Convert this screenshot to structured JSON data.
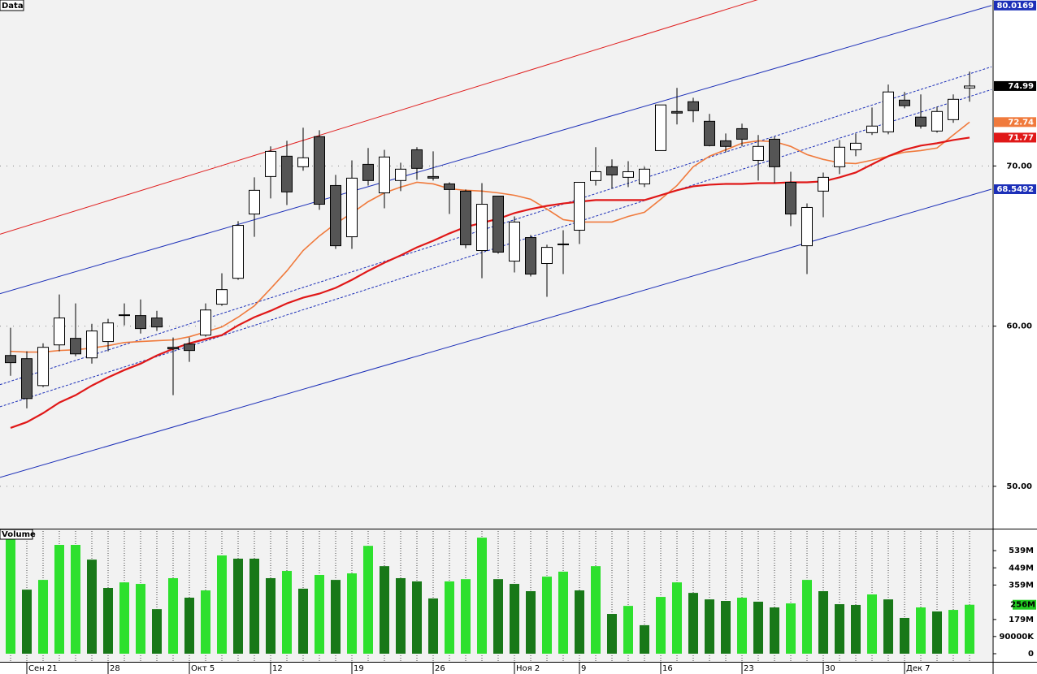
{
  "chart_data": [
    {
      "type": "candlestick",
      "title": "Data",
      "xlim": [
        -0.65,
        60.35
      ],
      "ylim": [
        47.36,
        80.36
      ],
      "yticks": [
        {
          "value": 50,
          "label": "50.00"
        },
        {
          "value": 60,
          "label": "60.00"
        },
        {
          "value": 70,
          "label": "70.00"
        }
      ],
      "grid": true,
      "up_color": "#ffffff",
      "down_color": "#555555",
      "open": [
        58.17,
        57.97,
        56.29,
        58.83,
        59.24,
        58.02,
        59.04,
        60.71,
        60.66,
        60.51,
        58.68,
        58.88,
        59.44,
        61.37,
        62.99,
        67.0,
        69.34,
        70.61,
        69.95,
        71.83,
        68.78,
        65.58,
        70.1,
        68.32,
        69.09,
        71.01,
        69.34,
        68.88,
        68.43,
        64.72,
        68.12,
        64.06,
        65.53,
        63.91,
        65.13,
        65.99,
        69.09,
        69.95,
        69.29,
        68.88,
        70.96,
        73.4,
        74.01,
        72.79,
        71.57,
        72.33,
        70.35,
        71.67,
        68.98,
        65.02,
        68.43,
        69.95,
        71.01,
        72.08,
        72.13,
        74.11,
        73.05,
        72.18,
        72.89,
        74.87
      ],
      "high": [
        59.9,
        58.43,
        58.93,
        61.98,
        61.42,
        60.15,
        60.46,
        61.42,
        61.67,
        60.96,
        59.29,
        59.29,
        61.42,
        63.3,
        66.55,
        69.29,
        71.22,
        71.57,
        72.39,
        72.23,
        69.44,
        70.35,
        71.12,
        71.01,
        70.2,
        71.17,
        70.91,
        68.98,
        68.53,
        68.93,
        68.12,
        66.85,
        65.69,
        65.08,
        65.99,
        68.98,
        71.17,
        70.41,
        70.3,
        69.95,
        73.81,
        74.87,
        74.26,
        73.25,
        72.03,
        72.64,
        71.93,
        71.83,
        69.64,
        67.66,
        69.59,
        71.62,
        72.03,
        73.65,
        75.08,
        74.62,
        74.47,
        73.7,
        74.47,
        75.89
      ],
      "low": [
        56.9,
        54.87,
        56.19,
        58.43,
        58.12,
        57.66,
        58.43,
        60.05,
        59.54,
        59.7,
        55.69,
        57.77,
        59.34,
        61.27,
        62.89,
        65.58,
        67.97,
        67.56,
        69.7,
        67.26,
        64.82,
        64.82,
        68.78,
        67.36,
        68.43,
        69.14,
        69.09,
        67.0,
        64.87,
        62.99,
        64.52,
        63.35,
        63.1,
        61.83,
        63.25,
        65.13,
        68.78,
        68.58,
        68.68,
        68.68,
        70.96,
        72.59,
        72.74,
        71.22,
        70.86,
        71.22,
        69.09,
        68.93,
        66.24,
        63.25,
        66.8,
        69.49,
        70.61,
        71.93,
        71.98,
        73.6,
        72.33,
        72.08,
        72.69,
        74.01
      ],
      "close": [
        57.72,
        55.48,
        58.68,
        60.51,
        58.27,
        59.7,
        60.2,
        60.66,
        59.85,
        59.95,
        58.58,
        58.48,
        61.01,
        62.28,
        66.29,
        68.48,
        70.91,
        68.38,
        70.51,
        67.61,
        65.02,
        69.24,
        69.09,
        70.56,
        69.8,
        69.85,
        69.24,
        68.53,
        65.08,
        67.61,
        64.62,
        66.5,
        63.25,
        64.92,
        65.08,
        68.98,
        69.64,
        69.44,
        69.64,
        69.8,
        73.81,
        73.3,
        73.45,
        71.27,
        71.22,
        71.67,
        71.22,
        69.95,
        67.0,
        67.41,
        69.29,
        71.17,
        71.42,
        72.49,
        74.62,
        73.76,
        72.49,
        73.4,
        74.16,
        74.99
      ],
      "overlays": [
        {
          "color": "#f07a3c",
          "values": [
            58.43,
            58.38,
            58.38,
            58.48,
            58.53,
            58.63,
            58.78,
            58.98,
            59.04,
            59.09,
            59.14,
            59.34,
            59.64,
            59.95,
            60.56,
            61.27,
            62.34,
            63.45,
            64.72,
            65.63,
            66.4,
            67.06,
            67.77,
            68.32,
            68.68,
            68.98,
            68.88,
            68.58,
            68.48,
            68.43,
            68.32,
            68.17,
            67.92,
            67.31,
            66.65,
            66.5,
            66.5,
            66.5,
            66.85,
            67.11,
            67.92,
            68.78,
            69.95,
            70.61,
            71.01,
            71.42,
            71.57,
            71.52,
            71.22,
            70.71,
            70.41,
            70.2,
            70.15,
            70.36,
            70.61,
            70.86,
            70.96,
            71.12,
            71.93,
            72.74
          ]
        },
        {
          "color": "#e01818",
          "values": [
            53.65,
            54.01,
            54.57,
            55.23,
            55.69,
            56.29,
            56.8,
            57.26,
            57.66,
            58.17,
            58.58,
            58.93,
            59.19,
            59.44,
            60.05,
            60.56,
            60.96,
            61.42,
            61.78,
            62.03,
            62.39,
            62.89,
            63.45,
            63.96,
            64.42,
            64.92,
            65.33,
            65.79,
            66.19,
            66.45,
            66.7,
            67.06,
            67.31,
            67.51,
            67.66,
            67.77,
            67.87,
            67.87,
            67.87,
            67.87,
            68.17,
            68.48,
            68.73,
            68.83,
            68.88,
            68.88,
            68.93,
            68.93,
            68.98,
            68.98,
            69.04,
            69.29,
            69.59,
            70.1,
            70.61,
            71.01,
            71.27,
            71.42,
            71.62,
            71.77
          ]
        }
      ],
      "lines": [
        {
          "color": "#1c2fb8",
          "dashed": false,
          "values": [
            62.03,
            80.0169
          ]
        },
        {
          "color": "#1c2fb8",
          "dashed": false,
          "values": [
            50.56,
            68.5492
          ]
        },
        {
          "color": "#e02020",
          "dashed": false,
          "values": [
            65.74,
            84.9
          ]
        },
        {
          "color": "#1c2fb8",
          "dashed": true,
          "values": [
            56.35,
            76.19
          ]
        },
        {
          "color": "#1c2fb8",
          "dashed": true,
          "values": [
            54.97,
            74.77
          ]
        }
      ]
    },
    {
      "type": "bar",
      "title": "Volume",
      "xlim": [
        -0.65,
        60.35
      ],
      "ylim": [
        0,
        637
      ],
      "yticks": [
        {
          "value": 539,
          "label": "539M"
        },
        {
          "value": 449,
          "label": "449M"
        },
        {
          "value": 359,
          "label": "359M"
        },
        {
          "value": 179,
          "label": "179M"
        },
        {
          "value": 90,
          "label": "90000K"
        },
        0
      ],
      "categories": [
        null,
        "Сен 21",
        null,
        null,
        null,
        null,
        "28",
        null,
        null,
        null,
        null,
        "Окт 5",
        null,
        null,
        null,
        null,
        "12",
        null,
        null,
        null,
        null,
        "19",
        null,
        null,
        null,
        null,
        "26",
        null,
        null,
        null,
        null,
        "Ноя 2",
        null,
        null,
        null,
        "9",
        null,
        null,
        null,
        null,
        "16",
        null,
        null,
        null,
        null,
        "23",
        null,
        null,
        null,
        null,
        "30",
        null,
        null,
        null,
        null,
        "Дек 7",
        null,
        null,
        null,
        null
      ],
      "values": [
        607,
        335,
        386,
        569,
        569,
        492,
        344,
        373,
        365,
        233,
        395,
        293,
        331,
        514,
        497,
        497,
        395,
        433,
        340,
        412,
        386,
        420,
        564,
        458,
        395,
        378,
        289,
        378,
        390,
        607,
        390,
        365,
        327,
        403,
        429,
        331,
        458,
        208,
        250,
        149,
        297,
        373,
        318,
        284,
        276,
        293,
        272,
        242,
        263,
        386,
        327,
        259,
        255,
        310,
        284,
        187,
        242,
        221,
        229,
        256
      ],
      "colors": [
        "#2ee02e",
        "#187818",
        "#2ee02e",
        "#2ee02e",
        "#2ee02e",
        "#187818",
        "#187818",
        "#2ee02e",
        "#2ee02e",
        "#187818",
        "#2ee02e",
        "#187818",
        "#2ee02e",
        "#2ee02e",
        "#187818",
        "#187818",
        "#187818",
        "#2ee02e",
        "#187818",
        "#2ee02e",
        "#187818",
        "#2ee02e",
        "#2ee02e",
        "#187818",
        "#187818",
        "#187818",
        "#187818",
        "#2ee02e",
        "#2ee02e",
        "#2ee02e",
        "#187818",
        "#187818",
        "#187818",
        "#2ee02e",
        "#2ee02e",
        "#187818",
        "#2ee02e",
        "#187818",
        "#2ee02e",
        "#187818",
        "#2ee02e",
        "#2ee02e",
        "#187818",
        "#187818",
        "#187818",
        "#2ee02e",
        "#187818",
        "#187818",
        "#2ee02e",
        "#2ee02e",
        "#187818",
        "#187818",
        "#187818",
        "#2ee02e",
        "#187818",
        "#187818",
        "#2ee02e",
        "#187818",
        "#2ee02e",
        "#2ee02e"
      ],
      "last_label": {
        "value": 256,
        "label": "256M"
      }
    }
  ]
}
